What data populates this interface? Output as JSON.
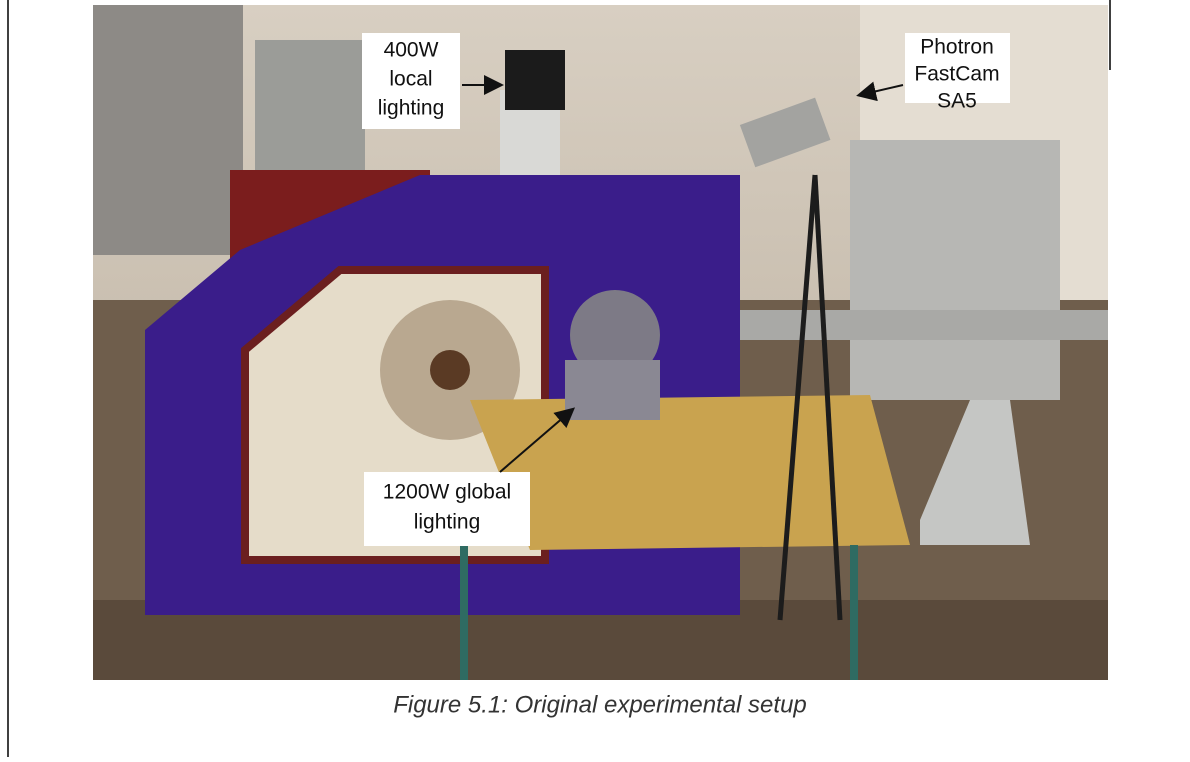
{
  "figure": {
    "annotations": [
      {
        "lines": [
          "400W",
          "local",
          "lighting"
        ]
      },
      {
        "lines": [
          "Photron",
          "FastCam",
          "SA5"
        ]
      },
      {
        "lines": [
          "1200W global",
          "lighting"
        ]
      }
    ],
    "caption": "Figure 5.1: Original experimental setup"
  }
}
